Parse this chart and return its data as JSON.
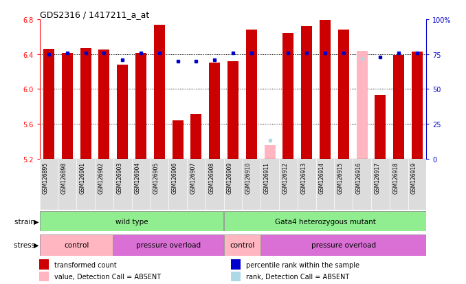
{
  "title": "GDS2316 / 1417211_a_at",
  "samples": [
    "GSM126895",
    "GSM126898",
    "GSM126901",
    "GSM126902",
    "GSM126903",
    "GSM126904",
    "GSM126905",
    "GSM126906",
    "GSM126907",
    "GSM126908",
    "GSM126909",
    "GSM126910",
    "GSM126911",
    "GSM126912",
    "GSM126913",
    "GSM126914",
    "GSM126915",
    "GSM126916",
    "GSM126917",
    "GSM126918",
    "GSM126919"
  ],
  "bar_values": [
    6.46,
    6.41,
    6.47,
    6.45,
    6.28,
    6.41,
    6.74,
    5.64,
    5.71,
    6.3,
    6.32,
    6.68,
    null,
    6.64,
    6.72,
    6.79,
    6.68,
    null,
    5.93,
    6.39,
    6.43
  ],
  "absent_bar_values": [
    null,
    null,
    null,
    null,
    null,
    null,
    null,
    null,
    null,
    null,
    null,
    null,
    5.36,
    null,
    null,
    null,
    null,
    6.44,
    null,
    null,
    null
  ],
  "rank_values": [
    75,
    76,
    76,
    76,
    71,
    76,
    76,
    70,
    70,
    71,
    76,
    76,
    null,
    76,
    76,
    76,
    76,
    null,
    73,
    76,
    76
  ],
  "absent_rank_values": [
    null,
    null,
    null,
    null,
    null,
    null,
    null,
    null,
    null,
    null,
    null,
    null,
    13,
    null,
    null,
    null,
    null,
    72,
    null,
    null,
    null
  ],
  "ylim_left": [
    5.2,
    6.8
  ],
  "ylim_right": [
    0,
    100
  ],
  "yticks_left": [
    5.2,
    5.6,
    6.0,
    6.4,
    6.8
  ],
  "yticks_right": [
    0,
    25,
    50,
    75,
    100
  ],
  "bar_color": "#CC0000",
  "absent_bar_color": "#FFB6C1",
  "rank_color": "#0000CC",
  "absent_rank_color": "#ADD8E6",
  "strain_groups": [
    {
      "label": "wild type",
      "start": 0,
      "end": 9,
      "color": "#90EE90"
    },
    {
      "label": "Gata4 heterozygous mutant",
      "start": 10,
      "end": 20,
      "color": "#90EE90"
    }
  ],
  "stress_groups": [
    {
      "label": "control",
      "start": 0,
      "end": 3,
      "color": "#FFB6C1"
    },
    {
      "label": "pressure overload",
      "start": 4,
      "end": 9,
      "color": "#DA70D6"
    },
    {
      "label": "control",
      "start": 10,
      "end": 11,
      "color": "#FFB6C1"
    },
    {
      "label": "pressure overload",
      "start": 12,
      "end": 20,
      "color": "#DA70D6"
    }
  ],
  "legend_items": [
    {
      "label": "transformed count",
      "color": "#CC0000"
    },
    {
      "label": "percentile rank within the sample",
      "color": "#0000CC"
    },
    {
      "label": "value, Detection Call = ABSENT",
      "color": "#FFB6C1"
    },
    {
      "label": "rank, Detection Call = ABSENT",
      "color": "#ADD8E6"
    }
  ]
}
